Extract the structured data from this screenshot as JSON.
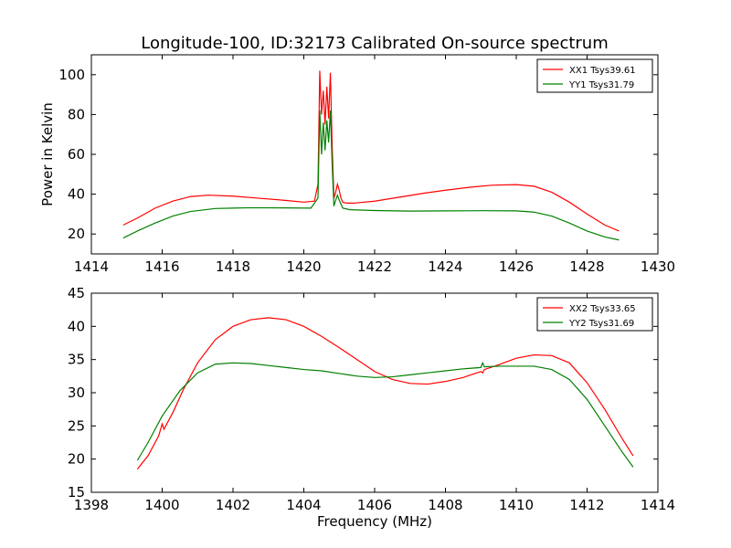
{
  "title": "Longitude-100, ID:32173 Calibrated On-source spectrum",
  "chart_data": [
    {
      "type": "line",
      "ylabel": "Power in Kelvin",
      "xlabel": "",
      "xlim": [
        1414,
        1430
      ],
      "ylim": [
        10,
        110
      ],
      "xticks": [
        1414,
        1416,
        1418,
        1420,
        1422,
        1424,
        1426,
        1428,
        1430
      ],
      "yticks": [
        20,
        40,
        60,
        80,
        100
      ],
      "xtick_labels": [
        "1414",
        "1416",
        "1418",
        "1420",
        "1422",
        "1424",
        "1426",
        "1428",
        "1430"
      ],
      "ytick_labels": [
        "20",
        "40",
        "60",
        "80",
        "100"
      ],
      "legend_position": "top-right",
      "series": [
        {
          "name": "XX1 Tsys39.61",
          "color": "#ff0000",
          "x": [
            1414.9,
            1415.3,
            1415.8,
            1416.3,
            1416.8,
            1417.3,
            1418.0,
            1418.7,
            1419.4,
            1420.0,
            1420.3,
            1420.4,
            1420.45,
            1420.5,
            1420.55,
            1420.6,
            1420.65,
            1420.7,
            1420.75,
            1420.8,
            1420.85,
            1420.9,
            1420.95,
            1421.0,
            1421.05,
            1421.1,
            1421.2,
            1421.4,
            1422.0,
            1422.7,
            1423.4,
            1424.0,
            1424.7,
            1425.3,
            1426.0,
            1426.5,
            1427.0,
            1427.5,
            1428.0,
            1428.5,
            1428.9
          ],
          "y": [
            24.5,
            28,
            33,
            36.5,
            38.8,
            39.5,
            39,
            38,
            37,
            36,
            36.5,
            45,
            102,
            80,
            92,
            75,
            94,
            78,
            101,
            64,
            38,
            41,
            45,
            42,
            38,
            36,
            35.5,
            35.5,
            36.5,
            38.5,
            40.5,
            42,
            43.5,
            44.5,
            44.8,
            44,
            41,
            36,
            30,
            24.5,
            21.5
          ]
        },
        {
          "name": "YY1 Tsys31.79",
          "color": "#008000",
          "x": [
            1414.9,
            1415.3,
            1415.8,
            1416.3,
            1416.8,
            1417.5,
            1418.5,
            1419.5,
            1420.2,
            1420.4,
            1420.45,
            1420.5,
            1420.55,
            1420.6,
            1420.65,
            1420.7,
            1420.75,
            1420.8,
            1420.85,
            1420.9,
            1420.95,
            1421.0,
            1421.1,
            1421.3,
            1422.0,
            1423.0,
            1424.0,
            1425.0,
            1426.0,
            1426.5,
            1427.0,
            1427.5,
            1428.0,
            1428.5,
            1428.9
          ],
          "y": [
            18,
            21.5,
            25.5,
            29,
            31.3,
            32.8,
            33.2,
            33.1,
            33,
            38,
            82,
            60,
            76,
            62,
            77,
            66,
            82,
            55,
            34,
            37,
            39.5,
            37,
            33,
            32.2,
            31.8,
            31.5,
            31.6,
            31.7,
            31.6,
            31,
            29,
            25.5,
            21.5,
            18.5,
            17
          ]
        }
      ]
    },
    {
      "type": "line",
      "xlabel": "Frequency (MHz)",
      "ylabel": "",
      "xlim": [
        1398,
        1414
      ],
      "ylim": [
        15,
        45
      ],
      "xticks": [
        1398,
        1400,
        1402,
        1404,
        1406,
        1408,
        1410,
        1412,
        1414
      ],
      "yticks": [
        15,
        20,
        25,
        30,
        35,
        40,
        45
      ],
      "xtick_labels": [
        "1398",
        "1400",
        "1402",
        "1404",
        "1406",
        "1408",
        "1410",
        "1412",
        "1414"
      ],
      "ytick_labels": [
        "15",
        "20",
        "25",
        "30",
        "35",
        "40",
        "45"
      ],
      "legend_position": "top-right",
      "series": [
        {
          "name": "XX2 Tsys33.65",
          "color": "#ff0000",
          "x": [
            1399.3,
            1399.6,
            1399.9,
            1400.0,
            1400.05,
            1400.3,
            1400.6,
            1401.0,
            1401.5,
            1402.0,
            1402.5,
            1403.0,
            1403.5,
            1404.0,
            1404.5,
            1405.0,
            1405.5,
            1406.0,
            1406.5,
            1407.0,
            1407.5,
            1408.0,
            1408.5,
            1409.0,
            1409.05,
            1409.1,
            1409.5,
            1410.0,
            1410.5,
            1411.0,
            1411.5,
            1412.0,
            1412.5,
            1413.0,
            1413.3
          ],
          "y": [
            18.5,
            20.5,
            23.5,
            25.3,
            24.5,
            27,
            30.5,
            34.5,
            38,
            40,
            41,
            41.3,
            41,
            40,
            38.5,
            36.8,
            35,
            33.2,
            32,
            31.4,
            31.3,
            31.7,
            32.3,
            33.2,
            33.0,
            33.5,
            34.2,
            35.2,
            35.7,
            35.6,
            34.5,
            31.5,
            27.5,
            23,
            20.5
          ]
        },
        {
          "name": "YY2 Tsys31.69",
          "color": "#008000",
          "x": [
            1399.3,
            1399.6,
            1400.0,
            1400.5,
            1401.0,
            1401.5,
            1402.0,
            1402.5,
            1403.0,
            1403.5,
            1404.0,
            1404.5,
            1405.0,
            1405.5,
            1406.0,
            1406.5,
            1407.0,
            1407.5,
            1408.0,
            1408.5,
            1409.0,
            1409.05,
            1409.1,
            1409.5,
            1410.0,
            1410.5,
            1411.0,
            1411.5,
            1412.0,
            1412.5,
            1413.0,
            1413.3
          ],
          "y": [
            19.8,
            22.5,
            26.5,
            30.3,
            33,
            34.3,
            34.5,
            34.4,
            34.1,
            33.8,
            33.5,
            33.3,
            32.9,
            32.5,
            32.3,
            32.4,
            32.7,
            33.0,
            33.3,
            33.6,
            33.8,
            34.5,
            33.9,
            34.0,
            34.0,
            34.0,
            33.5,
            32,
            29,
            25,
            21,
            18.8
          ]
        }
      ]
    }
  ]
}
